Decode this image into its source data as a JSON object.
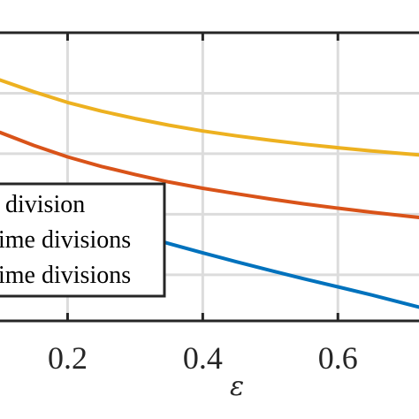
{
  "chart_data": {
    "type": "line",
    "xlabel": "ε",
    "ylabel": "",
    "title": "",
    "xlim": [
      0.1,
      0.72
    ],
    "ylim": [
      0,
      1
    ],
    "grid": true,
    "legend_placement": "lower-left",
    "x_ticks": [
      {
        "value": 0.2,
        "label": "0.2"
      },
      {
        "value": 0.4,
        "label": "0.4"
      },
      {
        "value": 0.6,
        "label": "0.6"
      }
    ],
    "y_ticks": [
      0.16,
      0.37,
      0.58,
      0.79
    ],
    "series": [
      {
        "color": "#EDB120",
        "x": [
          0.1,
          0.15,
          0.2,
          0.25,
          0.3,
          0.35,
          0.4,
          0.45,
          0.5,
          0.55,
          0.6,
          0.65,
          0.72
        ],
        "y": [
          0.836,
          0.795,
          0.758,
          0.728,
          0.702,
          0.679,
          0.659,
          0.642,
          0.627,
          0.613,
          0.601,
          0.59,
          0.576
        ]
      },
      {
        "color": "#D95319",
        "x": [
          0.1,
          0.15,
          0.2,
          0.25,
          0.3,
          0.35,
          0.4,
          0.45,
          0.5,
          0.55,
          0.6,
          0.65,
          0.72
        ],
        "y": [
          0.654,
          0.609,
          0.569,
          0.536,
          0.508,
          0.482,
          0.46,
          0.441,
          0.423,
          0.406,
          0.391,
          0.377,
          0.359
        ]
      },
      {
        "color": "#0072BD",
        "x": [
          0.1,
          0.15,
          0.2,
          0.25,
          0.3,
          0.35,
          0.4,
          0.45,
          0.5,
          0.55,
          0.6,
          0.65,
          0.72
        ],
        "y": [
          0.474,
          0.427,
          0.381,
          0.34,
          0.302,
          0.268,
          0.236,
          0.205,
          0.175,
          0.146,
          0.118,
          0.09,
          0.048
        ]
      }
    ],
    "legend": {
      "entries": [
        "division",
        "ime divisions",
        "ime divisions"
      ]
    }
  }
}
